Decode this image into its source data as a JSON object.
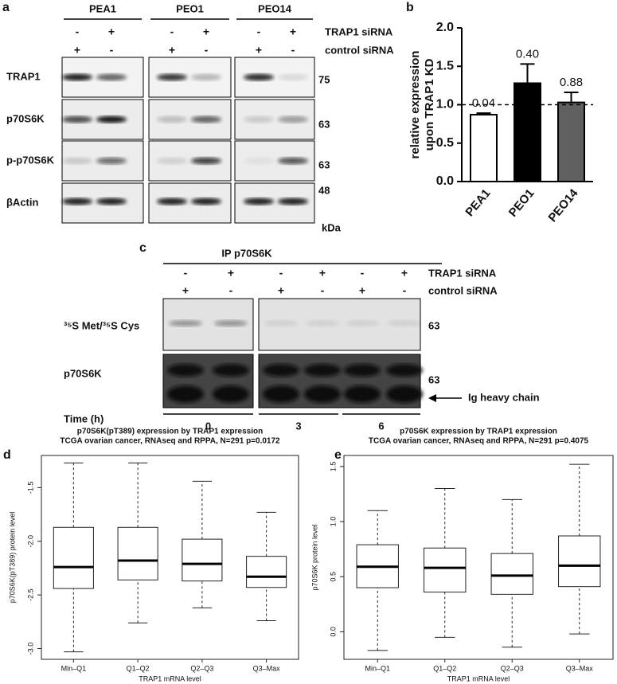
{
  "panel_labels": [
    "a",
    "b",
    "c",
    "d",
    "e"
  ],
  "blot_a": {
    "groups": [
      "PEA1",
      "PEO1",
      "PEO14"
    ],
    "treatments": [
      {
        "label": "TRAP1 siRNA",
        "signs": [
          "-",
          "+",
          "-",
          "+",
          "-",
          "+"
        ]
      },
      {
        "label": "control siRNA",
        "signs": [
          "+",
          "-",
          "+",
          "-",
          "+",
          "-"
        ]
      }
    ],
    "rows": [
      {
        "label": "TRAP1",
        "kda": 75
      },
      {
        "label": "p70S6K",
        "kda": 63
      },
      {
        "label": "p-p70S6K",
        "kda": 63
      },
      {
        "label": "βActin",
        "kda": 48
      }
    ],
    "kda_unit": "kDa"
  },
  "blot_c": {
    "header": "IP p70S6K",
    "treatments": [
      {
        "label": "TRAP1 siRNA",
        "signs": [
          "-",
          "+",
          "-",
          "+",
          "-",
          "+"
        ]
      },
      {
        "label": "control siRNA",
        "signs": [
          "+",
          "-",
          "+",
          "-",
          "+",
          "-"
        ]
      }
    ],
    "rows": [
      {
        "label": "³⁵S Met/³⁵S Cys",
        "kda": 63
      },
      {
        "label": "p70S6K",
        "kda": 63
      }
    ],
    "arrow_label": "Ig heavy chain",
    "time_label": "Time (h)",
    "times": [
      0,
      3,
      6
    ]
  },
  "chart_data": [
    {
      "type": "bar",
      "ylabel": [
        "relative expression",
        "upon TRAP1 KD"
      ],
      "categories": [
        "PEA1",
        "PEO1",
        "PEO14"
      ],
      "values": [
        0.87,
        1.28,
        1.03
      ],
      "errors": [
        0.02,
        0.25,
        0.13
      ],
      "colors": [
        "#ffffff",
        "#000000",
        "#606060"
      ],
      "annotations": [
        "0.04",
        "0.40",
        "0.88"
      ],
      "reference_line": 1,
      "ylim": [
        0,
        2
      ],
      "yticks": [
        {
          "value": 0,
          "label": "0.0"
        },
        0.5,
        {
          "value": 1,
          "label": "1.0"
        },
        1.5,
        {
          "value": 2,
          "label": "2.0"
        }
      ]
    },
    {
      "type": "box",
      "title": "p70S6K(pT389) expression by TRAP1 expression",
      "subtitle": "TCGA ovarian cancer, RNAseq and RPPA, N=291 p=0.0172",
      "xlabel": "TRAP1 mRNA level",
      "ylabel": "p70S6K(pT389) protein level",
      "categories": [
        "Min–Q1",
        "Q1–Q2",
        "Q2–Q3",
        "Q3–Max"
      ],
      "boxes": [
        {
          "min": -3.03,
          "q1": -2.44,
          "median": -2.24,
          "q3": -1.87,
          "max": -1.27
        },
        {
          "min": -2.76,
          "q1": -2.36,
          "median": -2.18,
          "q3": -1.87,
          "max": -1.27
        },
        {
          "min": -2.62,
          "q1": -2.37,
          "median": -2.21,
          "q3": -1.98,
          "max": -1.44
        },
        {
          "min": -2.74,
          "q1": -2.43,
          "median": -2.33,
          "q3": -2.14,
          "max": -1.73
        }
      ],
      "ylim": [
        -3.1,
        -1.2
      ],
      "yticks": [
        {
          "value": -3,
          "label": "-3.0"
        },
        -2.5,
        {
          "value": -2,
          "label": "-2.0"
        },
        -1.5
      ]
    },
    {
      "type": "box",
      "title": "p70S6K expression by TRAP1 expression",
      "subtitle": "TCGA ovarian cancer, RNAseq and RPPA, N=291 p=0.4075",
      "xlabel": "TRAP1 mRNA level",
      "ylabel": "p70S6K protein level",
      "categories": [
        "Min–Q1",
        "Q1–Q2",
        "Q2–Q3",
        "Q3–Max"
      ],
      "boxes": [
        {
          "min": -0.17,
          "q1": 0.4,
          "median": 0.59,
          "q3": 0.79,
          "max": 1.1
        },
        {
          "min": -0.05,
          "q1": 0.36,
          "median": 0.58,
          "q3": 0.76,
          "max": 1.3
        },
        {
          "min": -0.14,
          "q1": 0.34,
          "median": 0.51,
          "q3": 0.71,
          "max": 1.2
        },
        {
          "min": -0.02,
          "q1": 0.41,
          "median": 0.6,
          "q3": 0.87,
          "max": 1.52
        }
      ],
      "ylim": [
        -0.25,
        1.6
      ],
      "yticks": [
        {
          "value": 0,
          "label": "0.0"
        },
        0.5,
        {
          "value": 1,
          "label": "1.0"
        },
        1.5
      ]
    }
  ]
}
